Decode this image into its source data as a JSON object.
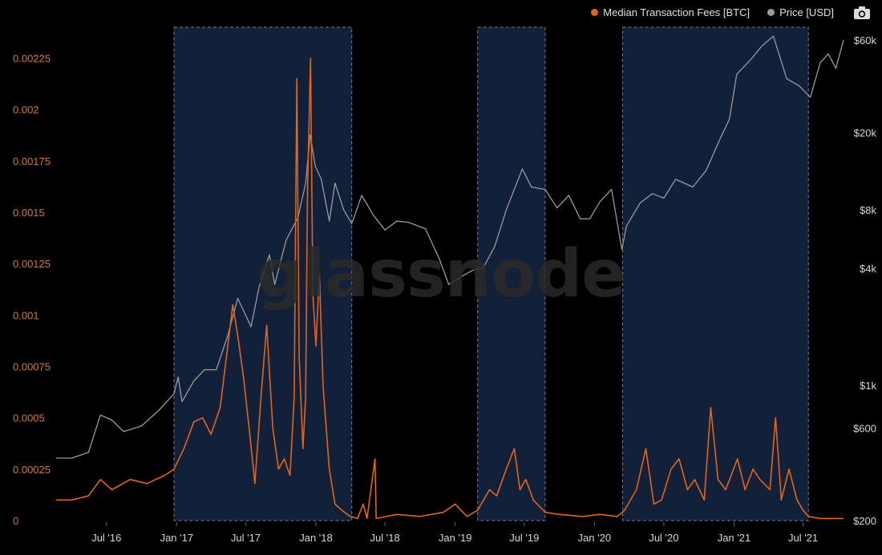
{
  "legend": {
    "fees_label": "Median Transaction Fees [BTC]",
    "price_label": "Price [USD]"
  },
  "watermark": "glassnode",
  "colors": {
    "fees": "#e0661b",
    "price": "#9a9a9a",
    "band_fill": "#13203a",
    "band_stroke": "#6d7f99",
    "left_axis_text": "#d9792a",
    "right_axis_text": "#d6d6d6"
  },
  "icons": {
    "camera": "camera-icon"
  },
  "chart_data": {
    "type": "line",
    "title": "",
    "x_ticks": [
      "Jul '16",
      "Jan '17",
      "Jul '17",
      "Jan '18",
      "Jul '18",
      "Jan '19",
      "Jul '19",
      "Jan '20",
      "Jul '20",
      "Jan '21",
      "Jul '21"
    ],
    "x_tick_dates": [
      "2016-07-01",
      "2017-01-01",
      "2017-07-01",
      "2018-01-01",
      "2018-07-01",
      "2019-01-01",
      "2019-07-01",
      "2020-01-01",
      "2020-07-01",
      "2021-01-01",
      "2021-07-01"
    ],
    "x_range": [
      "2016-02-20",
      "2021-10-15"
    ],
    "left_axis": {
      "ticks": [
        "0",
        "0.00025",
        "0.0005",
        "0.00075",
        "0.001",
        "0.00125",
        "0.0015",
        "0.00175",
        "0.002",
        "0.00225"
      ],
      "tick_values": [
        0,
        0.00025,
        0.0005,
        0.00075,
        0.001,
        0.00125,
        0.0015,
        0.00175,
        0.002,
        0.00225
      ],
      "ylim": [
        0,
        0.0024
      ]
    },
    "right_axis": {
      "scale": "log",
      "ticks": [
        "$200",
        "$600",
        "$1k",
        "$4k",
        "$8k",
        "$20k",
        "$60k"
      ],
      "tick_values": [
        200,
        600,
        1000,
        4000,
        8000,
        20000,
        60000
      ],
      "ylim": [
        200,
        70000
      ]
    },
    "highlight_bands": [
      {
        "start": "2016-12-25",
        "end": "2018-04-05"
      },
      {
        "start": "2019-03-01",
        "end": "2019-08-25"
      },
      {
        "start": "2020-03-15",
        "end": "2021-07-15"
      }
    ],
    "series": [
      {
        "name": "Median Transaction Fees [BTC]",
        "axis": "left",
        "points": [
          [
            "2016-02-20",
            0.0001
          ],
          [
            "2016-04-01",
            0.0001
          ],
          [
            "2016-05-15",
            0.00012
          ],
          [
            "2016-06-15",
            0.0002
          ],
          [
            "2016-07-15",
            0.00015
          ],
          [
            "2016-09-01",
            0.0002
          ],
          [
            "2016-10-15",
            0.00018
          ],
          [
            "2016-12-01",
            0.00022
          ],
          [
            "2016-12-25",
            0.00025
          ],
          [
            "2017-01-20",
            0.00035
          ],
          [
            "2017-02-15",
            0.00048
          ],
          [
            "2017-03-10",
            0.0005
          ],
          [
            "2017-04-01",
            0.00042
          ],
          [
            "2017-04-25",
            0.00055
          ],
          [
            "2017-05-15",
            0.00085
          ],
          [
            "2017-05-28",
            0.00105
          ],
          [
            "2017-06-10",
            0.0009
          ],
          [
            "2017-06-25",
            0.0007
          ],
          [
            "2017-07-10",
            0.00045
          ],
          [
            "2017-07-25",
            0.00018
          ],
          [
            "2017-08-10",
            0.0006
          ],
          [
            "2017-08-25",
            0.00095
          ],
          [
            "2017-09-10",
            0.00045
          ],
          [
            "2017-09-25",
            0.00025
          ],
          [
            "2017-10-10",
            0.0003
          ],
          [
            "2017-10-25",
            0.00022
          ],
          [
            "2017-11-05",
            0.0006
          ],
          [
            "2017-11-12",
            0.00215
          ],
          [
            "2017-11-18",
            0.0008
          ],
          [
            "2017-11-28",
            0.00035
          ],
          [
            "2017-12-05",
            0.0006
          ],
          [
            "2017-12-10",
            0.0016
          ],
          [
            "2017-12-18",
            0.00225
          ],
          [
            "2017-12-24",
            0.0011
          ],
          [
            "2018-01-01",
            0.00085
          ],
          [
            "2018-01-10",
            0.0012
          ],
          [
            "2018-01-20",
            0.00065
          ],
          [
            "2018-02-05",
            0.00025
          ],
          [
            "2018-02-20",
            8e-05
          ],
          [
            "2018-03-10",
            5e-05
          ],
          [
            "2018-04-01",
            2e-05
          ],
          [
            "2018-04-20",
            1e-05
          ],
          [
            "2018-05-05",
            8e-05
          ],
          [
            "2018-05-15",
            1e-05
          ],
          [
            "2018-06-05",
            0.0003
          ],
          [
            "2018-06-08",
            1e-05
          ],
          [
            "2018-08-01",
            3e-05
          ],
          [
            "2018-10-01",
            2e-05
          ],
          [
            "2018-12-01",
            4e-05
          ],
          [
            "2019-01-01",
            8e-05
          ],
          [
            "2019-02-01",
            2e-05
          ],
          [
            "2019-03-01",
            5e-05
          ],
          [
            "2019-04-01",
            0.00015
          ],
          [
            "2019-04-20",
            0.00012
          ],
          [
            "2019-05-15",
            0.00025
          ],
          [
            "2019-06-05",
            0.00035
          ],
          [
            "2019-06-20",
            0.00015
          ],
          [
            "2019-07-05",
            0.0002
          ],
          [
            "2019-07-25",
            0.0001
          ],
          [
            "2019-08-25",
            4e-05
          ],
          [
            "2019-10-01",
            3e-05
          ],
          [
            "2019-12-01",
            2e-05
          ],
          [
            "2020-01-15",
            3e-05
          ],
          [
            "2020-03-01",
            2e-05
          ],
          [
            "2020-03-20",
            5e-05
          ],
          [
            "2020-04-20",
            0.00015
          ],
          [
            "2020-05-15",
            0.00035
          ],
          [
            "2020-06-05",
            8e-05
          ],
          [
            "2020-06-25",
            0.0001
          ],
          [
            "2020-07-20",
            0.00025
          ],
          [
            "2020-08-10",
            0.0003
          ],
          [
            "2020-09-01",
            0.00015
          ],
          [
            "2020-09-20",
            0.0002
          ],
          [
            "2020-10-15",
            0.0001
          ],
          [
            "2020-11-01",
            0.00055
          ],
          [
            "2020-11-20",
            0.0002
          ],
          [
            "2020-12-10",
            0.00015
          ],
          [
            "2021-01-10",
            0.0003
          ],
          [
            "2021-01-30",
            0.00015
          ],
          [
            "2021-02-20",
            0.00025
          ],
          [
            "2021-03-10",
            0.0002
          ],
          [
            "2021-04-05",
            0.00015
          ],
          [
            "2021-04-20",
            0.0005
          ],
          [
            "2021-05-05",
            0.0001
          ],
          [
            "2021-05-25",
            0.00025
          ],
          [
            "2021-06-15",
            0.0001
          ],
          [
            "2021-07-01",
            5e-05
          ],
          [
            "2021-07-15",
            2e-05
          ],
          [
            "2021-08-15",
            1e-05
          ],
          [
            "2021-10-15",
            1e-05
          ]
        ]
      },
      {
        "name": "Price [USD]",
        "axis": "right",
        "points": [
          [
            "2016-02-20",
            420
          ],
          [
            "2016-04-01",
            420
          ],
          [
            "2016-05-15",
            450
          ],
          [
            "2016-06-15",
            700
          ],
          [
            "2016-07-15",
            660
          ],
          [
            "2016-08-15",
            575
          ],
          [
            "2016-10-01",
            615
          ],
          [
            "2016-11-15",
            740
          ],
          [
            "2016-12-25",
            900
          ],
          [
            "2017-01-05",
            1100
          ],
          [
            "2017-01-15",
            820
          ],
          [
            "2017-02-15",
            1050
          ],
          [
            "2017-03-15",
            1200
          ],
          [
            "2017-04-15",
            1200
          ],
          [
            "2017-05-15",
            1800
          ],
          [
            "2017-06-10",
            2800
          ],
          [
            "2017-07-15",
            2000
          ],
          [
            "2017-08-05",
            3200
          ],
          [
            "2017-09-01",
            4700
          ],
          [
            "2017-09-15",
            3300
          ],
          [
            "2017-10-15",
            5600
          ],
          [
            "2017-11-15",
            7300
          ],
          [
            "2017-12-05",
            11000
          ],
          [
            "2017-12-17",
            19500
          ],
          [
            "2017-12-30",
            13500
          ],
          [
            "2018-01-15",
            11500
          ],
          [
            "2018-02-05",
            7000
          ],
          [
            "2018-02-20",
            11000
          ],
          [
            "2018-03-15",
            8000
          ],
          [
            "2018-04-05",
            6800
          ],
          [
            "2018-05-01",
            9500
          ],
          [
            "2018-06-01",
            7500
          ],
          [
            "2018-07-01",
            6300
          ],
          [
            "2018-08-01",
            7000
          ],
          [
            "2018-09-01",
            6900
          ],
          [
            "2018-10-15",
            6400
          ],
          [
            "2018-11-20",
            4500
          ],
          [
            "2018-12-15",
            3300
          ],
          [
            "2019-01-15",
            3600
          ],
          [
            "2019-02-15",
            3900
          ],
          [
            "2019-03-15",
            4000
          ],
          [
            "2019-04-15",
            5200
          ],
          [
            "2019-05-15",
            8000
          ],
          [
            "2019-06-26",
            13000
          ],
          [
            "2019-07-20",
            10500
          ],
          [
            "2019-08-25",
            10200
          ],
          [
            "2019-09-25",
            8200
          ],
          [
            "2019-10-26",
            9500
          ],
          [
            "2019-11-25",
            7200
          ],
          [
            "2019-12-20",
            7200
          ],
          [
            "2020-01-15",
            8800
          ],
          [
            "2020-02-15",
            10200
          ],
          [
            "2020-03-13",
            5000
          ],
          [
            "2020-03-25",
            6600
          ],
          [
            "2020-04-30",
            8700
          ],
          [
            "2020-06-01",
            9700
          ],
          [
            "2020-07-01",
            9200
          ],
          [
            "2020-08-01",
            11500
          ],
          [
            "2020-09-15",
            10500
          ],
          [
            "2020-10-20",
            12800
          ],
          [
            "2020-11-25",
            18500
          ],
          [
            "2020-12-20",
            23500
          ],
          [
            "2021-01-08",
            40000
          ],
          [
            "2021-02-15",
            48000
          ],
          [
            "2021-03-15",
            56000
          ],
          [
            "2021-04-14",
            63000
          ],
          [
            "2021-05-19",
            38000
          ],
          [
            "2021-06-20",
            35000
          ],
          [
            "2021-07-20",
            30500
          ],
          [
            "2021-08-15",
            46000
          ],
          [
            "2021-09-05",
            51000
          ],
          [
            "2021-09-25",
            43000
          ],
          [
            "2021-10-15",
            60000
          ]
        ]
      }
    ]
  }
}
